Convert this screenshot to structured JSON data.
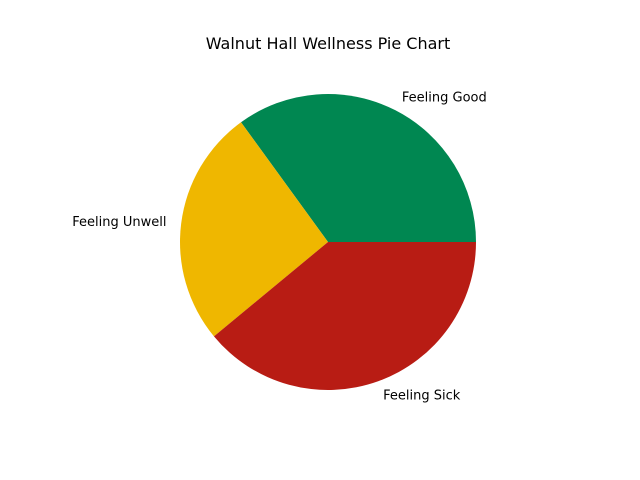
{
  "chart_data": {
    "type": "pie",
    "title": "Walnut Hall Wellness Pie Chart",
    "labels": [
      "Feeling Good",
      "Feeling Unwell",
      "Feeling Sick"
    ],
    "values": [
      35,
      26,
      39
    ],
    "colors": [
      "#008751",
      "#efb700",
      "#b81c14"
    ],
    "start_angle_deg": 0,
    "direction": "counterclockwise",
    "legend": "none"
  }
}
